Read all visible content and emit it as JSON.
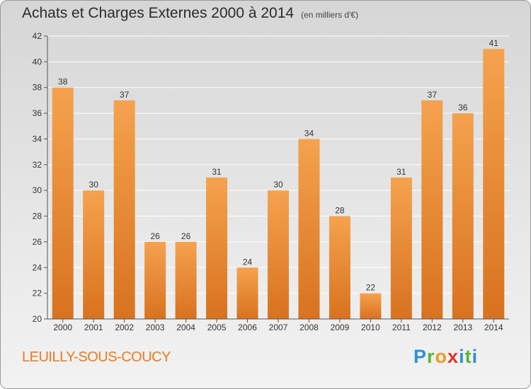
{
  "header": {
    "title": "Achats et Charges Externes 2000 à 2014",
    "unit": "(en milliers d'€)"
  },
  "footer": {
    "city": "LEUILLY-SOUS-COUCY",
    "logo": "Proxiti"
  },
  "colors": {
    "bar_light": "#f5a24e",
    "bar_dark": "#d8721f",
    "axis": "#555555",
    "grid": "#ffffff"
  },
  "chart_data": {
    "type": "bar",
    "title": "Achats et Charges Externes 2000 à 2014",
    "subtitle": "(en milliers d'€)",
    "xlabel": "",
    "ylabel": "",
    "categories": [
      "2000",
      "2001",
      "2002",
      "2003",
      "2004",
      "2005",
      "2006",
      "2007",
      "2008",
      "2009",
      "2010",
      "2011",
      "2012",
      "2013",
      "2014"
    ],
    "values": [
      38,
      30,
      37,
      26,
      26,
      31,
      24,
      30,
      34,
      28,
      22,
      31,
      37,
      36,
      41
    ],
    "ylim": [
      20,
      42
    ],
    "yticks": [
      20,
      22,
      24,
      26,
      28,
      30,
      32,
      34,
      36,
      38,
      40,
      42
    ],
    "grid": true,
    "data_labels": true
  }
}
